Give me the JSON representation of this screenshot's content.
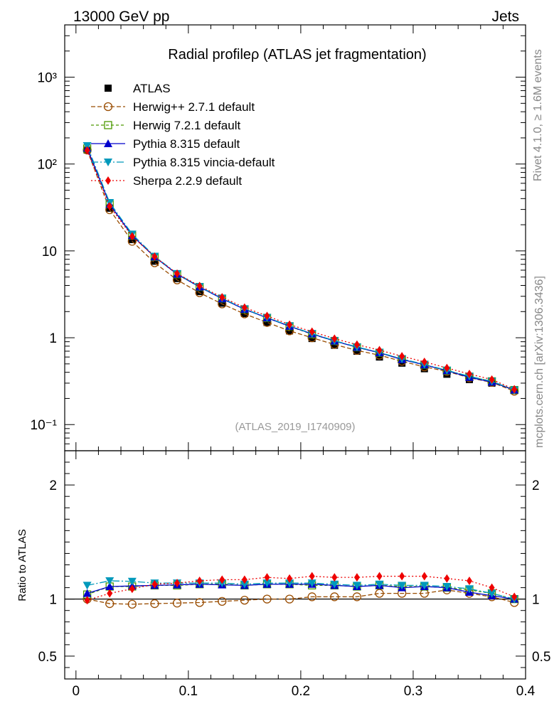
{
  "header": {
    "left": "13000 GeV pp",
    "right": "Jets",
    "side_top": "Rivet 4.1.0, ≥ 1.6M events",
    "side_bottom": "mcplots.cern.ch [arXiv:1306.3436]",
    "analysis_id": "(ATLAS_2019_I1740909)"
  },
  "chart_data": {
    "type": "line",
    "title": "Radial profileρ (ATLAS jet fragmentation)",
    "xlabel": "",
    "ylabel_ratio": "Ratio to ATLAS",
    "xlim": [
      -0.01,
      0.4
    ],
    "ylim_main": [
      0.05,
      4000
    ],
    "ylim_ratio": [
      0.3,
      2.3
    ],
    "yscale_main": "log",
    "x_ticks": [
      "0",
      "0.1",
      "0.2",
      "0.3",
      "0.4"
    ],
    "y_ticks_main": [
      "10⁻¹",
      "1",
      "10",
      "10²",
      "10³"
    ],
    "y_ticks_ratio": [
      "0.5",
      "1",
      "2"
    ],
    "legend_position": "top-left",
    "x": [
      0.01,
      0.03,
      0.05,
      0.07,
      0.09,
      0.11,
      0.13,
      0.15,
      0.17,
      0.19,
      0.21,
      0.23,
      0.25,
      0.27,
      0.29,
      0.31,
      0.33,
      0.35,
      0.37,
      0.39
    ],
    "data": {
      "name": "ATLAS",
      "values": [
        145,
        31,
        13.5,
        7.6,
        4.8,
        3.4,
        2.5,
        1.9,
        1.5,
        1.2,
        0.98,
        0.82,
        0.7,
        0.6,
        0.51,
        0.44,
        0.38,
        0.33,
        0.3,
        0.25
      ]
    },
    "series": [
      {
        "name": "Herwig++ 2.7.1 default",
        "color": "#994c00",
        "marker": "open-circle",
        "dash": "6,3",
        "ratio": [
          1.0,
          0.96,
          0.955,
          0.96,
          0.965,
          0.97,
          0.98,
          0.99,
          1.0,
          1.0,
          1.02,
          1.02,
          1.02,
          1.05,
          1.05,
          1.05,
          1.08,
          1.05,
          1.02,
          0.97
        ]
      },
      {
        "name": "Herwig 7.2.1 default",
        "color": "#4c9900",
        "marker": "open-square",
        "dash": "4,3",
        "ratio": [
          1.04,
          1.11,
          1.11,
          1.12,
          1.12,
          1.13,
          1.13,
          1.12,
          1.13,
          1.13,
          1.12,
          1.12,
          1.11,
          1.12,
          1.11,
          1.11,
          1.1,
          1.08,
          1.05,
          1.0
        ]
      },
      {
        "name": "Pythia 8.315 default",
        "color": "#0000cc",
        "marker": "filled-triangle-up",
        "dash": "",
        "ratio": [
          1.05,
          1.11,
          1.115,
          1.12,
          1.125,
          1.13,
          1.125,
          1.12,
          1.13,
          1.13,
          1.13,
          1.12,
          1.11,
          1.12,
          1.1,
          1.11,
          1.1,
          1.06,
          1.03,
          1.0
        ]
      },
      {
        "name": "Pythia 8.315 vincia-default",
        "color": "#0099bb",
        "marker": "filled-triangle-down",
        "dash": "10,3,2,3",
        "ratio": [
          1.12,
          1.16,
          1.155,
          1.14,
          1.14,
          1.14,
          1.14,
          1.13,
          1.14,
          1.14,
          1.14,
          1.13,
          1.12,
          1.13,
          1.12,
          1.12,
          1.11,
          1.09,
          1.05,
          1.0
        ]
      },
      {
        "name": "Sherpa 2.2.9 default",
        "color": "#ee0000",
        "marker": "filled-diamond",
        "dash": "2,3",
        "ratio": [
          0.99,
          1.05,
          1.09,
          1.13,
          1.14,
          1.16,
          1.17,
          1.17,
          1.19,
          1.18,
          1.2,
          1.19,
          1.19,
          1.2,
          1.2,
          1.2,
          1.18,
          1.16,
          1.1,
          1.02
        ]
      }
    ]
  }
}
